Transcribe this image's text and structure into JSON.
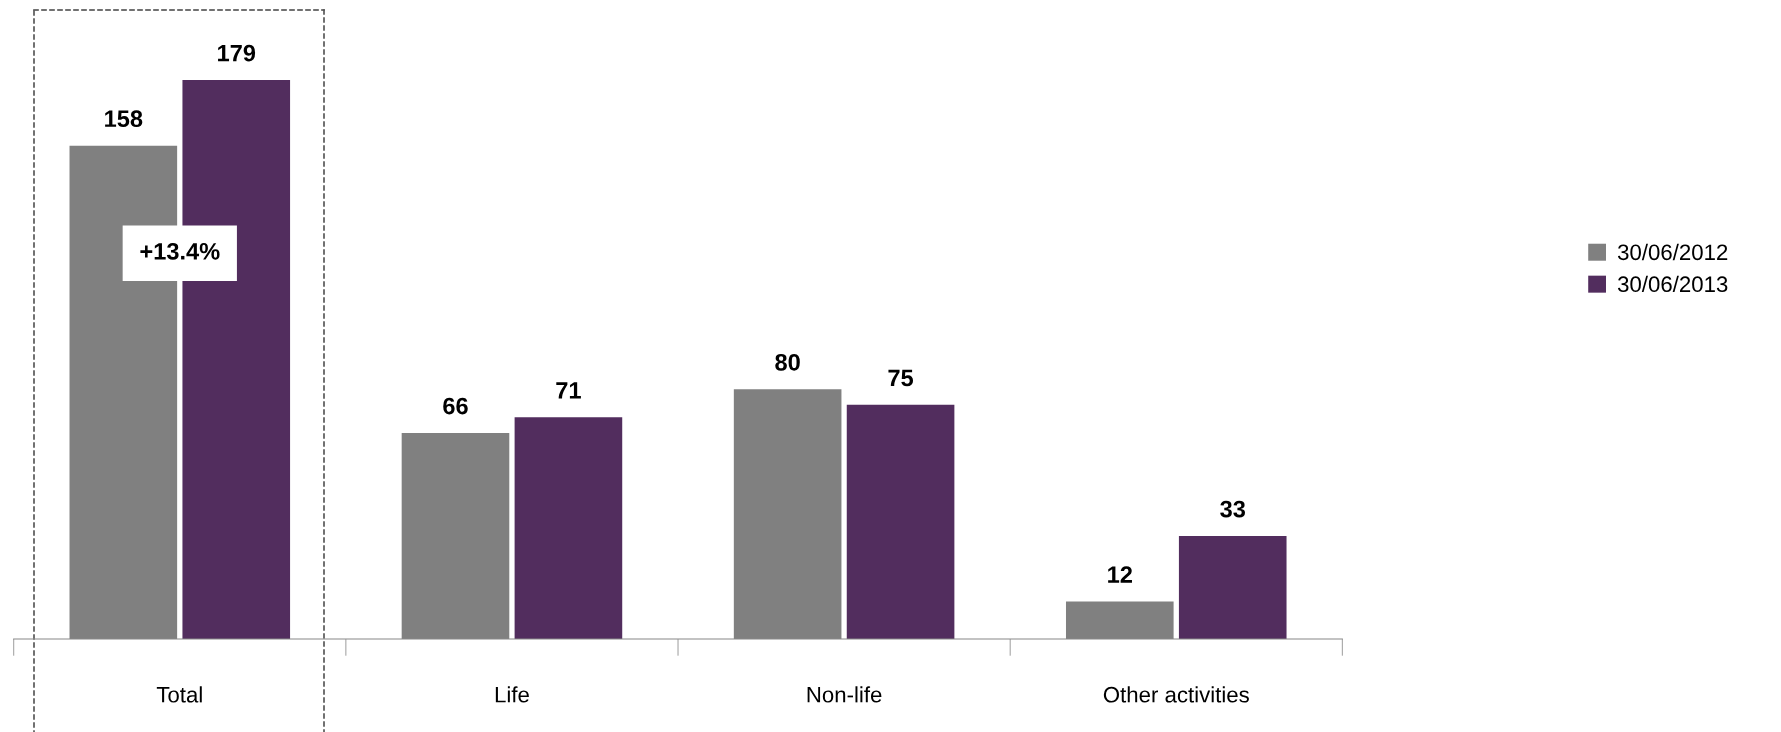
{
  "chart_data": {
    "type": "bar",
    "categories": [
      "Total",
      "Life",
      "Non-life",
      "Other activities"
    ],
    "series": [
      {
        "name": "30/06/2012",
        "color": "#808080",
        "values": [
          158,
          66,
          80,
          12
        ]
      },
      {
        "name": "30/06/2013",
        "color": "#522d5e",
        "values": [
          179,
          71,
          75,
          33
        ]
      }
    ],
    "data_labels": true,
    "legend": "right",
    "grid": false,
    "annotations": [
      "+13.4%"
    ]
  }
}
